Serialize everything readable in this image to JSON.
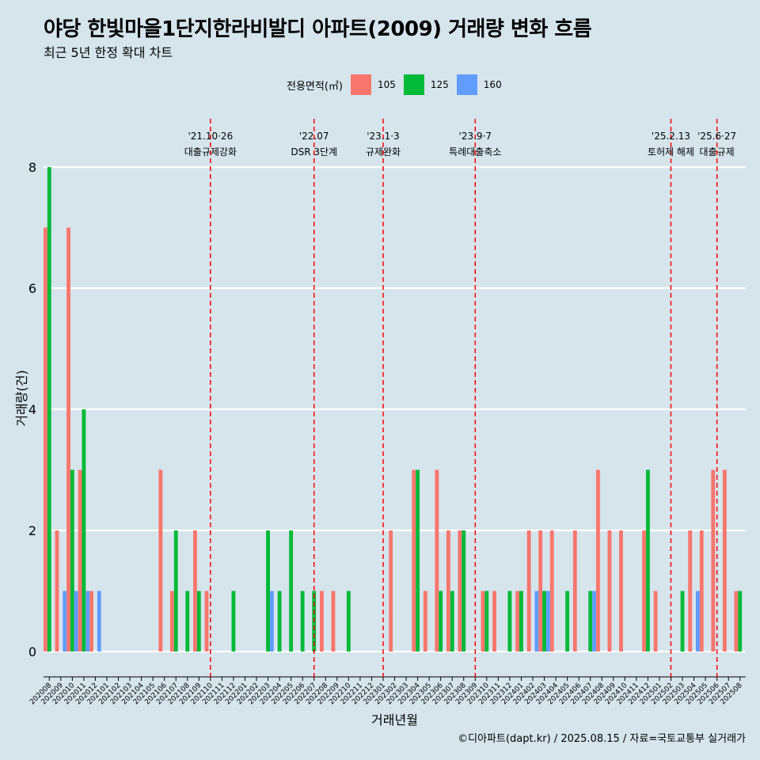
{
  "title": "야당 한빛마을1단지한라비발디 아파트(2009) 거래량 변화 흐름",
  "subtitle": "최근 5년 한정 확대 차트",
  "caption": "©디아파트(dapt.kr) / 2025.08.15 / 자료=국토교통부 실거래가",
  "legend": {
    "title": "전용면적(㎡)",
    "items": [
      {
        "label": "105",
        "color": "#f8766d"
      },
      {
        "label": "125",
        "color": "#00ba38"
      },
      {
        "label": "160",
        "color": "#619cff"
      }
    ]
  },
  "chart_data": {
    "type": "bar",
    "xlabel": "거래년월",
    "ylabel": "거래량(건)",
    "ylim": [
      0,
      8
    ],
    "yticks": [
      0,
      2,
      4,
      6,
      8
    ],
    "grid": true,
    "legend_position": "top",
    "categories": [
      "202008",
      "202009",
      "202010",
      "202011",
      "202012",
      "202101",
      "202102",
      "202103",
      "202104",
      "202105",
      "202106",
      "202107",
      "202108",
      "202109",
      "202110",
      "202111",
      "202112",
      "202201",
      "202202",
      "202203",
      "202204",
      "202205",
      "202206",
      "202207",
      "202208",
      "202209",
      "202210",
      "202211",
      "202212",
      "202301",
      "202302",
      "202303",
      "202304",
      "202305",
      "202306",
      "202307",
      "202308",
      "202309",
      "202310",
      "202311",
      "202312",
      "202401",
      "202402",
      "202403",
      "202404",
      "202405",
      "202406",
      "202407",
      "202408",
      "202409",
      "202410",
      "202411",
      "202412",
      "202501",
      "202502",
      "202503",
      "202504",
      "202505",
      "202506",
      "202507",
      "202508"
    ],
    "series": [
      {
        "name": "105",
        "color": "#f8766d",
        "values": [
          7,
          2,
          7,
          3,
          1,
          0,
          0,
          0,
          0,
          0,
          3,
          1,
          0,
          2,
          1,
          0,
          0,
          0,
          0,
          0,
          0,
          0,
          0,
          0,
          1,
          1,
          0,
          0,
          0,
          0,
          2,
          0,
          3,
          1,
          3,
          2,
          2,
          0,
          1,
          1,
          0,
          1,
          2,
          2,
          2,
          0,
          2,
          0,
          3,
          2,
          2,
          0,
          2,
          1,
          0,
          0,
          2,
          2,
          3,
          3,
          1
        ]
      },
      {
        "name": "125",
        "color": "#00ba38",
        "values": [
          8,
          0,
          3,
          4,
          0,
          0,
          0,
          0,
          0,
          0,
          0,
          2,
          1,
          1,
          0,
          0,
          1,
          0,
          0,
          2,
          1,
          2,
          1,
          1,
          0,
          0,
          1,
          0,
          0,
          0,
          0,
          0,
          3,
          0,
          1,
          1,
          2,
          0,
          1,
          0,
          1,
          1,
          0,
          1,
          0,
          1,
          0,
          1,
          0,
          0,
          0,
          0,
          3,
          0,
          0,
          1,
          0,
          0,
          0,
          0,
          1
        ]
      },
      {
        "name": "160",
        "color": "#619cff",
        "values": [
          0,
          1,
          1,
          1,
          1,
          0,
          0,
          0,
          0,
          0,
          0,
          0,
          0,
          0,
          0,
          0,
          0,
          0,
          0,
          1,
          0,
          0,
          0,
          0,
          0,
          0,
          0,
          0,
          0,
          0,
          0,
          0,
          0,
          0,
          0,
          0,
          0,
          0,
          0,
          0,
          0,
          0,
          1,
          1,
          0,
          0,
          0,
          1,
          0,
          0,
          0,
          0,
          0,
          0,
          0,
          0,
          1,
          0,
          0,
          0,
          0
        ]
      }
    ],
    "annotations": [
      {
        "at": "202110",
        "date": "'21.10·26",
        "text": "대출규제강화"
      },
      {
        "at": "202207",
        "date": "'22.07",
        "text": "DSR 3단계"
      },
      {
        "at": "202301",
        "date": "'23.1·3",
        "text": "규제완화"
      },
      {
        "at": "202309",
        "date": "'23.9·7",
        "text": "특례대출축소"
      },
      {
        "at": "202502",
        "date": "'25.2.13",
        "text": "토허제 해제"
      },
      {
        "at": "202506",
        "date": "'25.6·27",
        "text": "대출규제"
      }
    ]
  }
}
